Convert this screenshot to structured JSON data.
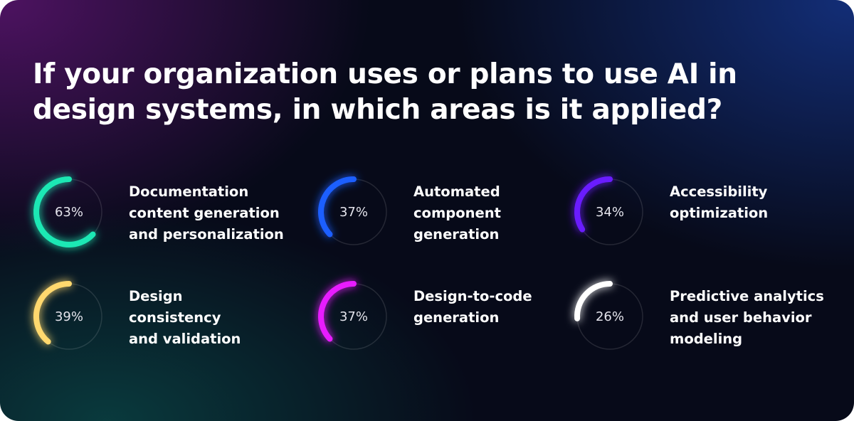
{
  "chart_data": {
    "type": "gauge",
    "title": "If your organization uses or plans to use AI in design systems, in which areas is it applied?",
    "categories": [
      [
        "Documentation",
        "content generation",
        "and personalization"
      ],
      [
        "Automated",
        "component",
        "generation"
      ],
      [
        "Accessibility",
        "optimization"
      ],
      [
        "Design",
        "consistency",
        "and validation"
      ],
      [
        "Design-to-code",
        "generation"
      ],
      [
        "Predictive analytics",
        "and user behavior",
        "modeling"
      ]
    ],
    "values": [
      63,
      37,
      34,
      39,
      37,
      26
    ],
    "value_labels": [
      "63%",
      "37%",
      "34%",
      "39%",
      "37%",
      "26%"
    ],
    "colors": [
      "#1fe8b4",
      "#1f5fff",
      "#6b1cff",
      "#ffd86e",
      "#e81cff",
      "#ffffff"
    ],
    "ylim": [
      0,
      100
    ]
  }
}
